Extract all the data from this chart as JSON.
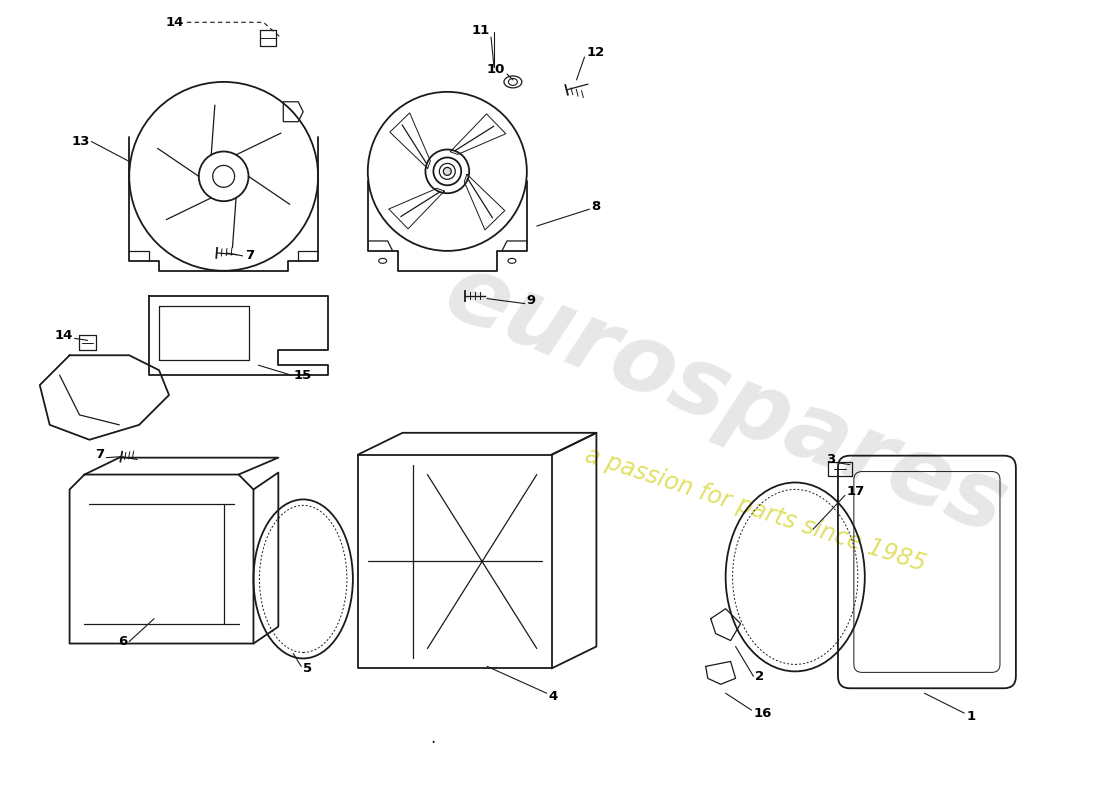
{
  "bg_color": "#ffffff",
  "line_color": "#1a1a1a",
  "label_color": "#111111",
  "watermark_text1": "eurospares",
  "watermark_text2": "a passion for parts since 1985",
  "fig_w": 11.0,
  "fig_h": 8.0,
  "dpi": 100
}
